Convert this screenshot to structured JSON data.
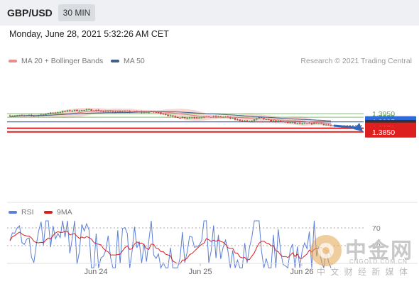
{
  "header": {
    "symbol": "GBP/USD",
    "timeframe": "30 MIN"
  },
  "datetime": "Monday, June 28, 2021 5:32:26 AM CET",
  "legend": [
    {
      "label": "MA 20 + Bollinger Bands",
      "color": "#e88c8c"
    },
    {
      "label": "MA 50",
      "color": "#3f5f8f"
    }
  ],
  "credit": "Research © 2021 Trading Central",
  "rsi_legend": [
    {
      "label": "RSI",
      "color": "#5b7fd6"
    },
    {
      "label": "9MA",
      "color": "#d82020"
    }
  ],
  "watermark": {
    "name": "中金网",
    "site": "CNGOLD.COM.CN",
    "slogan": "中 文 财 经 新 媒 体"
  },
  "chart_data": {
    "type": "line",
    "x": [
      "Jun 24",
      "Jun 25",
      "Jun 26"
    ],
    "price_levels": [
      {
        "value": 1.395,
        "label": "1.3950",
        "kind": "resistance",
        "color": "#7dc36b"
      },
      {
        "value": 1.393,
        "label": "1.3930",
        "kind": "resistance",
        "color": "#7dc36b"
      },
      {
        "value": 1.3905,
        "label": "1.3905",
        "kind": "pivot",
        "color": "#2f6bd6"
      },
      {
        "value": 1.3884,
        "label": "1.3884",
        "kind": "last-price",
        "color": "#333333"
      },
      {
        "value": 1.387,
        "label": "1.3870",
        "kind": "support",
        "color": "#dd1f1f"
      },
      {
        "value": 1.385,
        "label": "1.3850",
        "kind": "support",
        "color": "#dd1f1f"
      }
    ],
    "rsi_levels": [
      {
        "value": 70,
        "label": "70"
      },
      {
        "value": 50,
        "label": "50"
      }
    ],
    "series": [
      {
        "name": "MA 20 + Bollinger Bands",
        "color": "#e88c8c"
      },
      {
        "name": "MA 50",
        "color": "#3f5f8f"
      },
      {
        "name": "RSI",
        "color": "#5b7fd6"
      },
      {
        "name": "9MA",
        "color": "#d82020"
      }
    ],
    "grid": false
  }
}
